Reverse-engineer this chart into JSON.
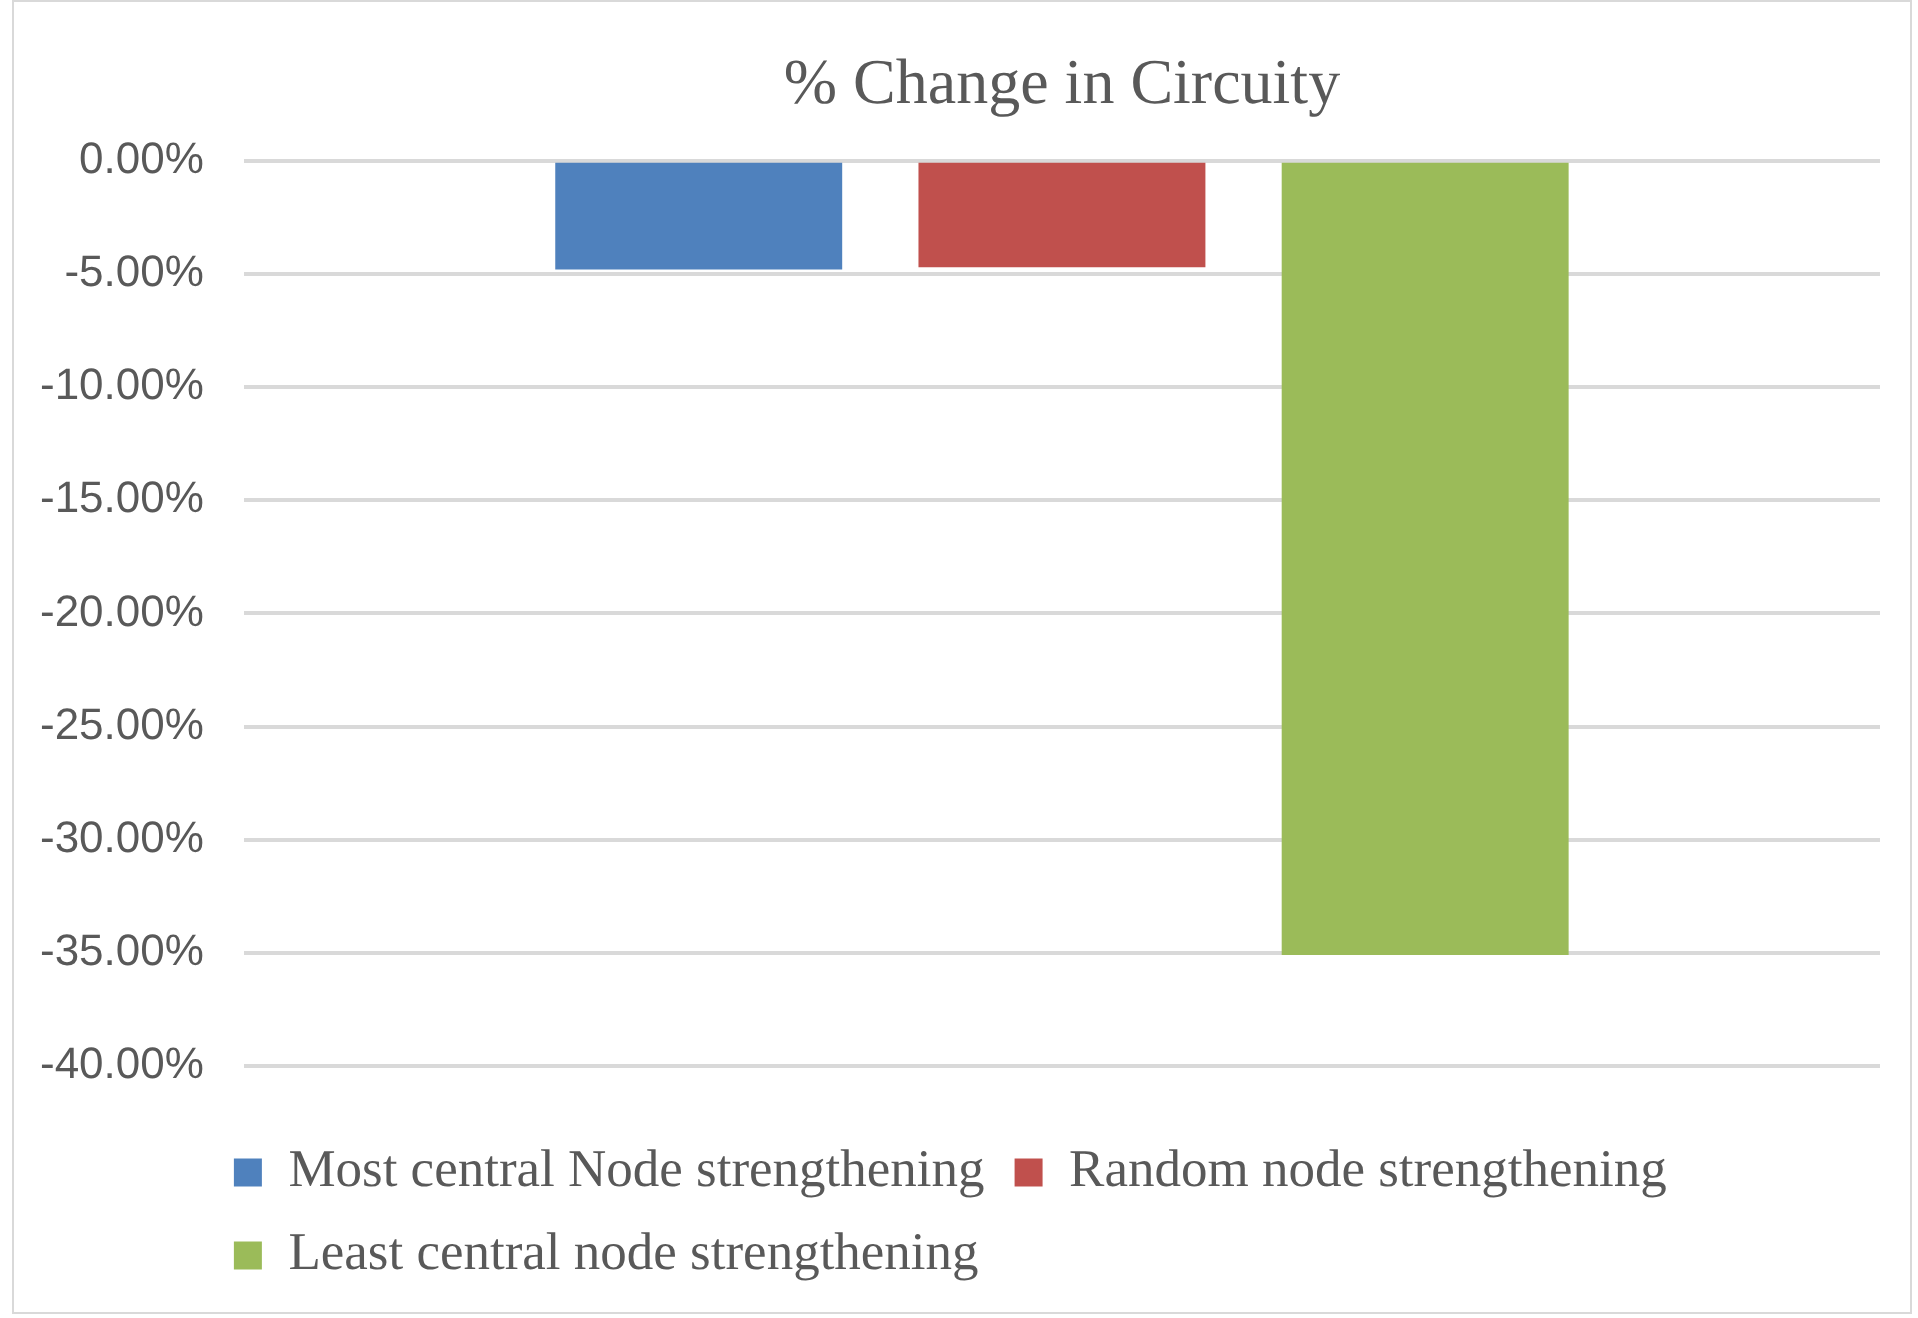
{
  "chart_data": {
    "type": "bar",
    "title": "% Change in Circuity",
    "categories": [
      null
    ],
    "series": [
      {
        "name": "Most central Node strengthening",
        "color": "#4f81bd",
        "values": [
          -4.8
        ]
      },
      {
        "name": "Random node strengthening",
        "color": "#c0504d",
        "values": [
          -4.7
        ]
      },
      {
        "name": "Least central node strengthening",
        "color": "#9bbb59",
        "values": [
          -35.1
        ]
      }
    ],
    "ylim": [
      -40,
      0
    ],
    "yticks": [
      {
        "value": 0,
        "label": "0.00%"
      },
      {
        "value": -5,
        "label": "-5.00%"
      },
      {
        "value": -10,
        "label": "-10.00%"
      },
      {
        "value": -15,
        "label": "-15.00%"
      },
      {
        "value": -20,
        "label": "-20.00%"
      },
      {
        "value": -25,
        "label": "-25.00%"
      },
      {
        "value": -30,
        "label": "-30.00%"
      },
      {
        "value": -35,
        "label": "-35.00%"
      },
      {
        "value": -40,
        "label": "-40.00%"
      }
    ],
    "grid": "y",
    "legend": "bottom",
    "tick_labels": "y"
  }
}
